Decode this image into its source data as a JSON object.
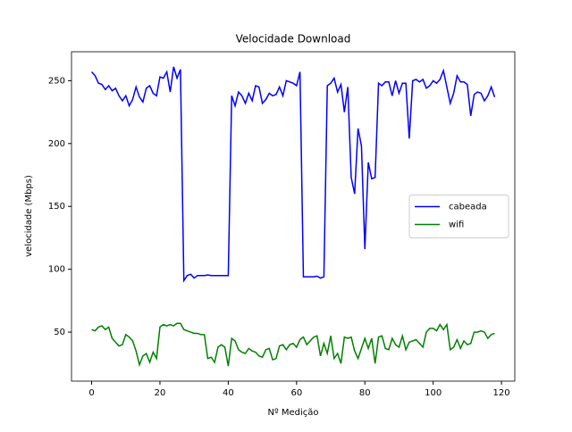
{
  "chart_data": {
    "type": "line",
    "title": "Velocidade Download",
    "xlabel": "Nº Medição",
    "ylabel": "velocidade (Mbps)",
    "x": [
      0,
      1,
      2,
      3,
      4,
      5,
      6,
      7,
      8,
      9,
      10,
      11,
      12,
      13,
      14,
      15,
      16,
      17,
      18,
      19,
      20,
      21,
      22,
      23,
      24,
      25,
      26,
      27,
      28,
      29,
      30,
      31,
      32,
      33,
      34,
      35,
      36,
      37,
      38,
      39,
      40,
      41,
      42,
      43,
      44,
      45,
      46,
      47,
      48,
      49,
      50,
      51,
      52,
      53,
      54,
      55,
      56,
      57,
      58,
      59,
      60,
      61,
      62,
      63,
      64,
      65,
      66,
      67,
      68,
      69,
      70,
      71,
      72,
      73,
      74,
      75,
      76,
      77,
      78,
      79,
      80,
      81,
      82,
      83,
      84,
      85,
      86,
      87,
      88,
      89,
      90,
      91,
      92,
      93,
      94,
      95,
      96,
      97,
      98,
      99,
      100,
      101,
      102,
      103,
      104,
      105,
      106,
      107,
      108,
      109,
      110,
      111,
      112,
      113,
      114,
      115,
      116,
      117,
      118
    ],
    "series": [
      {
        "name": "cabeada",
        "color": "#0000ff",
        "values": [
          257,
          254,
          248,
          247,
          243,
          246,
          242,
          244,
          238,
          234,
          238,
          230,
          235,
          245,
          237,
          233,
          244,
          246,
          240,
          238,
          253,
          252,
          257,
          241,
          261,
          252,
          259,
          91,
          95,
          96,
          93,
          95,
          95,
          95,
          95.5,
          95,
          95,
          95,
          95,
          95,
          95,
          238,
          230,
          241,
          238,
          232,
          240,
          234,
          246,
          245,
          232,
          235,
          240,
          238,
          239,
          245,
          238,
          250,
          249,
          248,
          246,
          257,
          94,
          94,
          94,
          94,
          94.5,
          93,
          94,
          246,
          248,
          252,
          241,
          247,
          225,
          245,
          173,
          160,
          212,
          198,
          116,
          185,
          172,
          173,
          248,
          246,
          249,
          249,
          238,
          250,
          240,
          248,
          248,
          204,
          250,
          251,
          249,
          251,
          244,
          246,
          250,
          248,
          251,
          258,
          245,
          232,
          240,
          254,
          249,
          249,
          247,
          222,
          239,
          241,
          240,
          234,
          238,
          245,
          237
        ]
      },
      {
        "name": "wifi",
        "color": "#008000",
        "values": [
          52,
          51,
          54,
          55,
          52,
          54,
          45,
          42,
          39,
          40,
          48,
          46,
          43,
          35,
          24,
          31,
          33,
          26,
          34,
          29,
          54,
          56,
          55,
          56,
          55,
          57,
          57,
          52,
          51,
          50,
          49,
          49,
          48,
          48,
          29,
          30,
          26,
          38,
          40,
          38,
          23,
          45,
          43,
          36,
          34,
          33,
          37,
          35,
          34,
          31,
          30,
          36,
          37,
          28,
          29,
          39,
          40,
          36,
          40,
          41,
          38,
          44,
          46,
          40,
          43,
          46,
          47,
          31,
          41,
          33,
          47,
          29,
          33,
          25,
          46,
          45,
          46,
          35,
          29,
          37,
          45,
          37,
          45,
          25,
          46,
          47,
          37,
          36,
          45,
          40,
          38,
          47,
          36,
          42,
          43,
          44,
          41,
          38,
          50,
          53,
          53,
          51,
          56,
          52,
          56,
          36,
          38,
          44,
          37,
          43,
          40,
          41,
          50,
          50,
          51,
          50,
          45,
          48,
          49
        ]
      }
    ],
    "xlim": [
      -5.9,
      123.9
    ],
    "ylim": [
      11,
      273
    ],
    "xticks": [
      0,
      20,
      40,
      60,
      80,
      100,
      120
    ],
    "yticks": [
      50,
      100,
      150,
      200,
      250
    ],
    "legend": "center right"
  }
}
